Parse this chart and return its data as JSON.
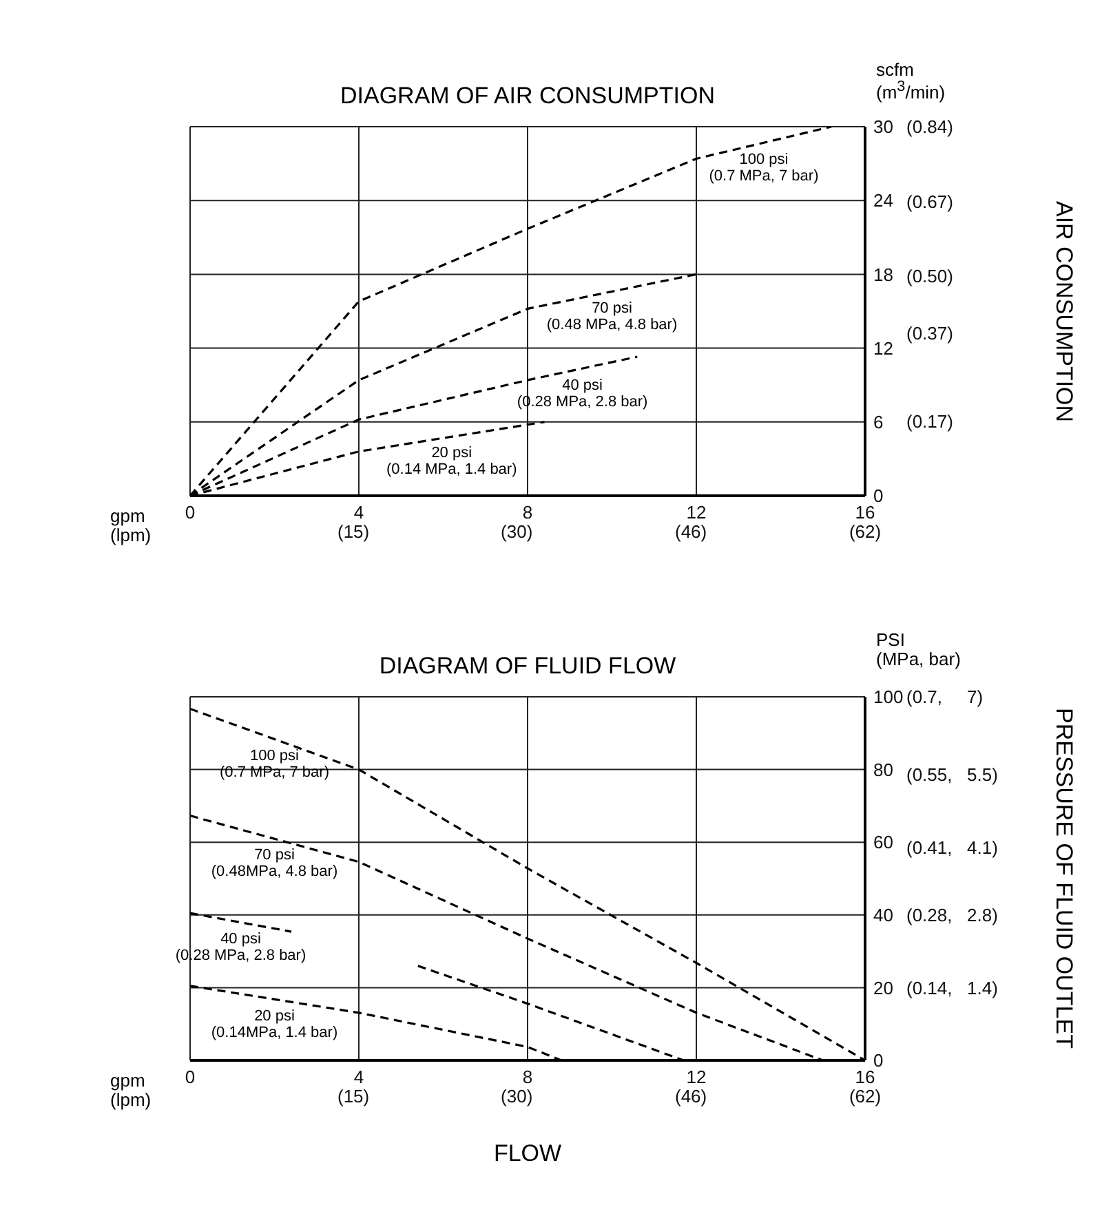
{
  "chart_data": [
    {
      "type": "line",
      "title": "DIAGRAM OF AIR CONSUMPTION",
      "y2label": "AIR CONSUMPTION",
      "annotations": [
        "scfm\n(m$^{3}$/min)",
        "gpm\n(lpm)"
      ],
      "xlim": [
        0,
        16
      ],
      "xticks": [
        0,
        4,
        8,
        12,
        16
      ],
      "x2lim": [
        0,
        62
      ],
      "x2ticks": [
        {
          "value": 15,
          "label": "(15)"
        },
        {
          "value": 30,
          "label": "(30)"
        },
        {
          "value": 46,
          "label": "(46)"
        },
        {
          "value": 62,
          "label": "(62)"
        }
      ],
      "ylim": [
        0,
        30
      ],
      "yticks": [
        0,
        6,
        12,
        18,
        24,
        30
      ],
      "y2lim": [
        0,
        0.84
      ],
      "y2ticks": [
        {
          "value": 0.17,
          "label": "(0.17)"
        },
        {
          "value": 0.37,
          "label": "(0.37)"
        },
        {
          "value": 0.5,
          "label": "(0.50)"
        },
        {
          "value": 0.67,
          "label": "(0.67)"
        },
        {
          "value": 0.84,
          "label": "(0.84)"
        }
      ],
      "grid": true,
      "marker": "none",
      "line_style": "dashed",
      "series": [
        {
          "name": "100 psi\n(0.7 MPa, 7 bar)",
          "color": "#000000",
          "x": [
            0,
            4,
            8,
            12,
            15.2
          ],
          "values": [
            0,
            15.8,
            21.7,
            27.4,
            30
          ]
        },
        {
          "name": "70 psi\n(0.48 MPa, 4.8 bar)",
          "color": "#000000",
          "x": [
            0,
            4,
            8,
            12
          ],
          "values": [
            0,
            9.4,
            15.2,
            18
          ]
        },
        {
          "name": "40 psi\n(0.28 MPa, 2.8 bar)",
          "color": "#000000",
          "x": [
            0,
            4,
            8,
            10.6
          ],
          "values": [
            0,
            6.2,
            9.4,
            11.3
          ]
        },
        {
          "name": "20 psi\n(0.14 MPa, 1.4 bar)",
          "color": "#000000",
          "x": [
            0,
            4,
            8.4
          ],
          "values": [
            0,
            3.6,
            6
          ]
        }
      ]
    },
    {
      "type": "line",
      "title": "DIAGRAM OF FLUID FLOW",
      "xlabel": "FLOW",
      "y2label": "PRESSURE OF FLUID OUTLET",
      "annotations": [
        "PSI\n(MPa, bar)",
        "gpm\n(lpm)"
      ],
      "xlim": [
        0,
        16
      ],
      "xticks": [
        0,
        4,
        8,
        12,
        16
      ],
      "x2lim": [
        0,
        62
      ],
      "x2ticks": [
        {
          "value": 15,
          "label": "(15)"
        },
        {
          "value": 30,
          "label": "(30)"
        },
        {
          "value": 46,
          "label": "(46)"
        },
        {
          "value": 62,
          "label": "(62)"
        }
      ],
      "ylim": [
        0,
        100
      ],
      "yticks": [
        0,
        20,
        40,
        60,
        80,
        100
      ],
      "y2lim": [
        0,
        0.7
      ],
      "y2ticks": [
        {
          "value": 0.14,
          "label": "(0.14,"
        },
        {
          "value": 0.28,
          "label": "(0.28,"
        },
        {
          "value": 0.41,
          "label": "(0.41,"
        },
        {
          "value": 0.55,
          "label": "(0.55,"
        },
        {
          "value": 0.7,
          "label": "(0.7,"
        }
      ],
      "y3lim": [
        0,
        7
      ],
      "y3ticks": [
        {
          "value": 1.4,
          "label": "1.4)"
        },
        {
          "value": 2.8,
          "label": "2.8)"
        },
        {
          "value": 4.1,
          "label": "4.1)"
        },
        {
          "value": 5.5,
          "label": "5.5)"
        },
        {
          "value": 7,
          "label": "7)"
        }
      ],
      "grid": true,
      "marker": "none",
      "line_style": "dashed",
      "series": [
        {
          "name": "100 psi\n(0.7 MPa, 7 bar)",
          "color": "#000000",
          "x": [
            0,
            4,
            8,
            12,
            16
          ],
          "values": [
            96.7,
            80,
            52.8,
            26.8,
            0
          ]
        },
        {
          "name": "70 psi\n(0.48MPa, 4.8 bar)",
          "color": "#000000",
          "x": [
            0,
            4,
            8,
            12,
            15
          ],
          "values": [
            67.3,
            54.6,
            33.5,
            13.1,
            0
          ]
        },
        {
          "name": "40 psi\n(0.28 MPa, 2.8 bar)",
          "color": "#000000",
          "x": [
            0,
            2.4,
            4,
            5.4,
            8,
            11.7
          ],
          "values": [
            40.5,
            35.4,
            null,
            26,
            15.6,
            0
          ]
        },
        {
          "name": "20 psi\n(0.14MPa, 1.4 bar)",
          "color": "#000000",
          "x": [
            0,
            4,
            8,
            8.8
          ],
          "values": [
            20.5,
            13.1,
            3.7,
            0
          ]
        }
      ]
    }
  ]
}
